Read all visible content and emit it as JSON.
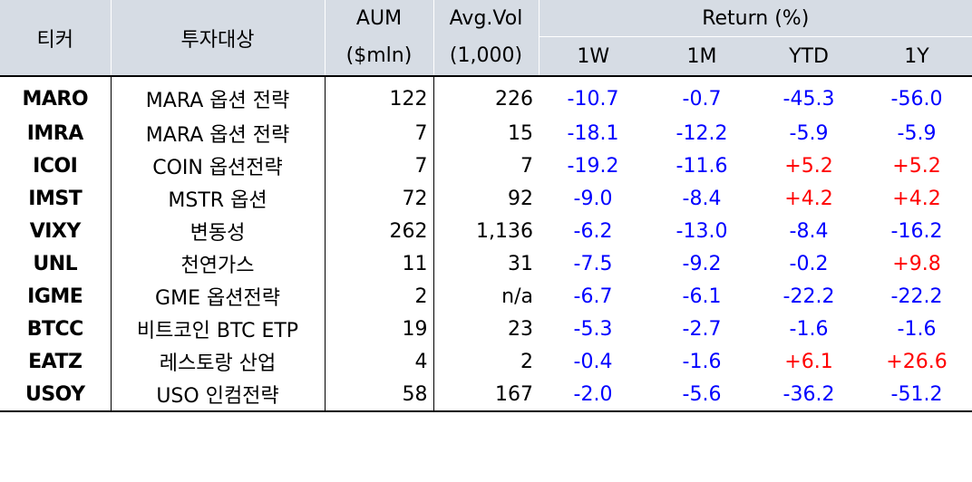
{
  "header": {
    "ticker": "티커",
    "target": "투자대상",
    "aum": "AUM",
    "aum_unit": "($mln)",
    "avgvol": "Avg.Vol",
    "avgvol_unit": "(1,000)",
    "return": "Return (%)",
    "w1": "1W",
    "m1": "1M",
    "ytd": "YTD",
    "y1": "1Y"
  },
  "rows": [
    {
      "ticker": "MARO",
      "target": "MARA 옵션 전략",
      "aum": "122",
      "vol": "226",
      "w1": "-10.7",
      "m1": "-0.7",
      "ytd": "-45.3",
      "y1": "-56.0"
    },
    {
      "ticker": "IMRA",
      "target": "MARA 옵션 전략",
      "aum": "7",
      "vol": "15",
      "w1": "-18.1",
      "m1": "-12.2",
      "ytd": "-5.9",
      "y1": "-5.9"
    },
    {
      "ticker": "ICOI",
      "target": "COIN 옵션전략",
      "aum": "7",
      "vol": "7",
      "w1": "-19.2",
      "m1": "-11.6",
      "ytd": "+5.2",
      "y1": "+5.2"
    },
    {
      "ticker": "IMST",
      "target": "MSTR 옵션",
      "aum": "72",
      "vol": "92",
      "w1": "-9.0",
      "m1": "-8.4",
      "ytd": "+4.2",
      "y1": "+4.2"
    },
    {
      "ticker": "VIXY",
      "target": "변동성",
      "aum": "262",
      "vol": "1,136",
      "w1": "-6.2",
      "m1": "-13.0",
      "ytd": "-8.4",
      "y1": "-16.2"
    },
    {
      "ticker": "UNL",
      "target": "천연가스",
      "aum": "11",
      "vol": "31",
      "w1": "-7.5",
      "m1": "-9.2",
      "ytd": "-0.2",
      "y1": "+9.8"
    },
    {
      "ticker": "IGME",
      "target": "GME 옵션전략",
      "aum": "2",
      "vol": "n/a",
      "w1": "-6.7",
      "m1": "-6.1",
      "ytd": "-22.2",
      "y1": "-22.2"
    },
    {
      "ticker": "BTCC",
      "target": "비트코인 BTC ETP",
      "aum": "19",
      "vol": "23",
      "w1": "-5.3",
      "m1": "-2.7",
      "ytd": "-1.6",
      "y1": "-1.6"
    },
    {
      "ticker": "EATZ",
      "target": "레스토랑 산업",
      "aum": "4",
      "vol": "2",
      "w1": "-0.4",
      "m1": "-1.6",
      "ytd": "+6.1",
      "y1": "+26.6"
    },
    {
      "ticker": "USOY",
      "target": "USO 인컴전략",
      "aum": "58",
      "vol": "167",
      "w1": "-2.0",
      "m1": "-5.6",
      "ytd": "-36.2",
      "y1": "-51.2"
    }
  ]
}
